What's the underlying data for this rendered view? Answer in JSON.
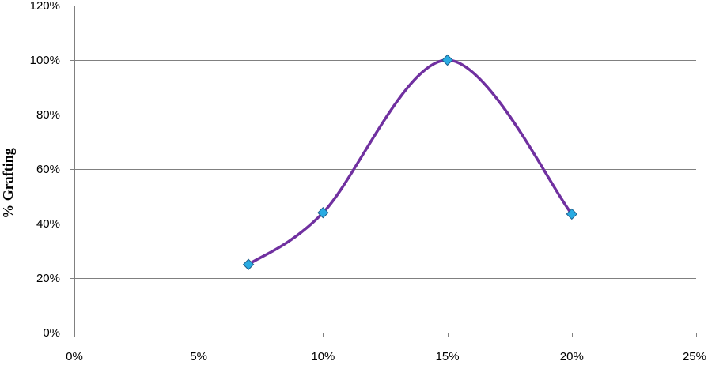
{
  "chart_data": {
    "type": "line",
    "title": "",
    "xlabel": "",
    "ylabel": "% Grafting",
    "xlim": [
      0,
      25
    ],
    "ylim": [
      0,
      120
    ],
    "x_ticks": [
      "0%",
      "5%",
      "10%",
      "15%",
      "20%",
      "25%"
    ],
    "y_ticks": [
      "0%",
      "20%",
      "40%",
      "60%",
      "80%",
      "100%",
      "120%"
    ],
    "grid": "horizontal",
    "smooth": true,
    "series": [
      {
        "name": "% Grafting",
        "x": [
          7,
          10,
          15,
          20
        ],
        "y": [
          25,
          44,
          100,
          43.5
        ]
      }
    ],
    "colors": {
      "line": "#7030a0",
      "marker_fill": "#29abe2",
      "marker_stroke": "#1f5f8b",
      "grid": "#808080",
      "axis": "#808080"
    }
  }
}
